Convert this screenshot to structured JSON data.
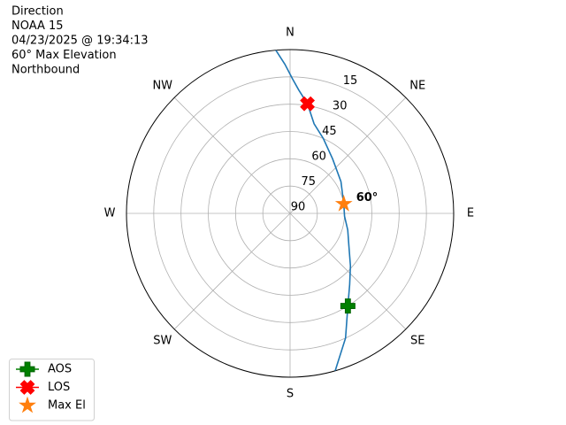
{
  "chart_data": {
    "type": "polar",
    "title": [
      "Direction",
      "NOAA 15",
      "04/23/2025 @ 19:34:13",
      "60° Max Elevation",
      "Northbound"
    ],
    "theta_zero": "N",
    "theta_direction": "clockwise",
    "rlim": [
      90,
      0
    ],
    "rticks": [
      15,
      30,
      45,
      60,
      75,
      90
    ],
    "thetaticks": [
      {
        "value": 0,
        "label": "N"
      },
      {
        "value": 45,
        "label": "NE"
      },
      {
        "value": 90,
        "label": "E"
      },
      {
        "value": 135,
        "label": "SE"
      },
      {
        "value": 180,
        "label": "S"
      },
      {
        "value": 225,
        "label": "SW"
      },
      {
        "value": 270,
        "label": "W"
      },
      {
        "value": 315,
        "label": "NW"
      }
    ],
    "grid": true,
    "series": [
      {
        "color": "#1f77b4",
        "marker": "none",
        "line": true,
        "theta": [
          164,
          156,
          148,
          140,
          131,
          119,
          106,
          93,
          80,
          58,
          38,
          24,
          15,
          9,
          4,
          1,
          358,
          355
        ],
        "r": [
          0,
          15,
          30,
          39,
          46,
          53,
          57,
          60,
          60,
          57,
          52,
          45,
          39,
          29,
          22,
          16,
          8,
          0
        ]
      },
      {
        "name": "AOS",
        "color": "#008000",
        "marker": "plus",
        "line": true,
        "theta": [
          148
        ],
        "r": [
          30
        ]
      },
      {
        "name": "LOS",
        "color": "#ff0000",
        "marker": "x",
        "line": true,
        "theta": [
          9
        ],
        "r": [
          29
        ]
      },
      {
        "name": "Max El",
        "color": "#ff7f0e",
        "marker": "star",
        "line": false,
        "theta": [
          80
        ],
        "r": [
          60
        ],
        "value_labels": [
          "60°"
        ]
      }
    ],
    "legend": "lower left"
  }
}
